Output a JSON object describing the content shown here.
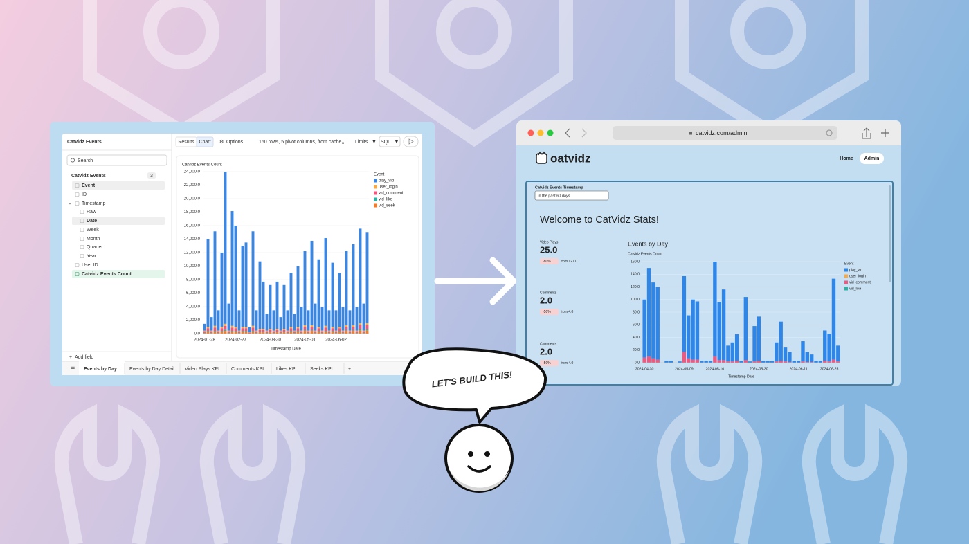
{
  "left_app": {
    "source": "Catvidz Events",
    "search": "Search",
    "explore": "Catvidz Events",
    "field_count": "3",
    "fields": [
      "Event",
      "ID",
      "Timestamp",
      "Raw",
      "Date",
      "Week",
      "Month",
      "Quarter",
      "Year",
      "User ID",
      "Catvidz Events Count"
    ],
    "add_field": "Add field",
    "toolbar": {
      "results": "Results",
      "chart": "Chart",
      "options": "Options",
      "status": "160 rows, 5 pivot columns, from cache",
      "limits": "Limits",
      "sql": "SQL"
    },
    "tabs": [
      "Events by Day",
      "Events by Day Detail",
      "Video Plays KPI",
      "Comments KPI",
      "Likes KPI",
      "Seeks KPI"
    ]
  },
  "browser": {
    "url": "catvidz.com/admin",
    "logo": "oatvidz",
    "nav": [
      "Home",
      "Admin"
    ],
    "filter_label": "Catvidz Events Timestamp",
    "filter_value": "In the past 60 days",
    "heading": "Welcome to CatVidz Stats!",
    "kpis": [
      {
        "label": "Video Plays",
        "value": "25.0",
        "change": "-80%",
        "compare": "from 127.0"
      },
      {
        "label": "Comments",
        "value": "2.0",
        "change": "-50%",
        "compare": "from 4.0"
      },
      {
        "label": "Comments",
        "value": "2.0",
        "change": "-50%",
        "compare": "from 4.0"
      }
    ]
  },
  "speech": "LET'S BUILD THIS!",
  "chart_data": [
    {
      "type": "bar",
      "ylabel": "Catvidz Events Count",
      "xlabel": "Timestamp Date",
      "legend_title": "Event",
      "categories": [
        "2024-01-28",
        null,
        null,
        null,
        null,
        null,
        null,
        null,
        null,
        "2024-02-27",
        null,
        null,
        null,
        null,
        null,
        null,
        null,
        null,
        null,
        "2024-03-30",
        null,
        null,
        null,
        null,
        null,
        null,
        null,
        null,
        null,
        "2024-05-01",
        null,
        null,
        null,
        null,
        null,
        null,
        null,
        null,
        "2024-06-02",
        null,
        null,
        null,
        null,
        null,
        null,
        null,
        null,
        null
      ],
      "ylim": [
        0,
        24000
      ],
      "yticks": [
        {
          "value": 0,
          "label": "0.0"
        },
        {
          "value": 2000,
          "label": "2,000.0"
        },
        {
          "value": 4000,
          "label": "4,000.0"
        },
        {
          "value": 6000,
          "label": "6,000.0"
        },
        {
          "value": 8000,
          "label": "8,000.0"
        },
        {
          "value": 10000,
          "label": "10,000.0"
        },
        {
          "value": 12000,
          "label": "12,000.0"
        },
        {
          "value": 14000,
          "label": "14,000.0"
        },
        {
          "value": 16000,
          "label": "16,000.0"
        },
        {
          "value": 18000,
          "label": "18,000.0"
        },
        {
          "value": 20000,
          "label": "20,000.0"
        },
        {
          "value": 22000,
          "label": "22,000.0"
        },
        {
          "value": 24000,
          "label": "24,000.0"
        }
      ],
      "grid": true,
      "stacked": true,
      "series": [
        {
          "name": "play_vid",
          "color": "#3a86e0",
          "values": [
            1000,
            13000,
            2000,
            14000,
            3000,
            11000,
            22500,
            4000,
            17000,
            15000,
            3000,
            12000,
            12500,
            800,
            14000,
            3000,
            10000,
            7000,
            2500,
            6500,
            3000,
            7000,
            2000,
            6500,
            3000,
            8000,
            2500,
            9000,
            3500,
            11000,
            3000,
            12500,
            4000,
            10000,
            3500,
            13000,
            3000,
            9500,
            3000,
            8000,
            3500,
            11000,
            3000,
            12000,
            3500,
            14000,
            4000,
            13500
          ]
        },
        {
          "name": "user_login",
          "color": "#f2aa4c",
          "values": [
            100,
            200,
            100,
            250,
            100,
            200,
            300,
            100,
            250,
            200,
            100,
            200,
            200,
            50,
            250,
            100,
            150,
            150,
            100,
            150,
            100,
            150,
            100,
            150,
            100,
            200,
            100,
            200,
            100,
            250,
            100,
            250,
            100,
            200,
            100,
            250,
            100,
            200,
            100,
            200,
            100,
            250,
            100,
            250,
            100,
            300,
            100,
            300
          ]
        },
        {
          "name": "vid_comment",
          "color": "#e85a7e",
          "values": [
            200,
            400,
            200,
            500,
            200,
            400,
            600,
            200,
            500,
            400,
            200,
            400,
            400,
            100,
            500,
            200,
            300,
            300,
            200,
            300,
            200,
            300,
            200,
            300,
            200,
            400,
            200,
            400,
            200,
            500,
            200,
            500,
            200,
            400,
            200,
            500,
            200,
            400,
            200,
            400,
            200,
            500,
            200,
            500,
            200,
            600,
            200,
            600
          ]
        },
        {
          "name": "vid_like",
          "color": "#2ab3a3",
          "values": [
            50,
            100,
            50,
            100,
            50,
            100,
            150,
            50,
            100,
            100,
            50,
            100,
            100,
            0,
            100,
            50,
            50,
            50,
            50,
            50,
            50,
            50,
            50,
            50,
            50,
            100,
            50,
            100,
            50,
            100,
            50,
            100,
            50,
            100,
            50,
            100,
            50,
            100,
            50,
            100,
            50,
            100,
            50,
            100,
            50,
            150,
            50,
            150
          ]
        },
        {
          "name": "vid_seek",
          "color": "#f27b2c",
          "values": [
            100,
            300,
            100,
            300,
            100,
            300,
            400,
            100,
            300,
            300,
            100,
            300,
            300,
            50,
            300,
            100,
            200,
            200,
            100,
            200,
            100,
            200,
            100,
            200,
            100,
            300,
            100,
            300,
            100,
            400,
            100,
            400,
            100,
            300,
            100,
            300,
            100,
            300,
            100,
            300,
            100,
            400,
            100,
            400,
            100,
            500,
            100,
            500
          ]
        }
      ]
    },
    {
      "type": "bar",
      "title": "Events by Day",
      "ylabel": "Catvidz Events Count",
      "xlabel": "Timestamp Date",
      "legend_title": "Event",
      "categories": [
        "2024-04-30",
        null,
        null,
        null,
        null,
        null,
        null,
        null,
        null,
        "2024-05-09",
        null,
        null,
        null,
        null,
        null,
        null,
        "2024-05-16",
        null,
        null,
        null,
        null,
        null,
        null,
        null,
        null,
        null,
        "2024-05-30",
        null,
        null,
        null,
        null,
        null,
        null,
        null,
        null,
        "2024-06-11",
        null,
        null,
        null,
        null,
        null,
        null,
        "2024-06-25",
        null,
        null
      ],
      "ylim": [
        0,
        160
      ],
      "yticks": [
        {
          "value": 0,
          "label": "0.0"
        },
        {
          "value": 20,
          "label": "20.0"
        },
        {
          "value": 40,
          "label": "40.0"
        },
        {
          "value": 60,
          "label": "60.0"
        },
        {
          "value": 80,
          "label": "80.0"
        },
        {
          "value": 100,
          "label": "100.0"
        },
        {
          "value": 120,
          "label": "120.0"
        },
        {
          "value": 140,
          "label": "140.0"
        },
        {
          "value": 160,
          "label": "160.0"
        }
      ],
      "grid": true,
      "stacked": true,
      "series": [
        {
          "name": "play_vid",
          "color": "#2f86e6",
          "values": [
            92,
            140,
            120,
            115,
            0,
            3,
            3,
            0,
            2,
            120,
            68,
            95,
            92,
            3,
            3,
            3,
            150,
            92,
            112,
            25,
            30,
            42,
            3,
            100,
            2,
            56,
            70,
            3,
            3,
            3,
            30,
            62,
            22,
            16,
            3,
            3,
            32,
            16,
            12,
            3,
            3,
            48,
            44,
            128,
            25
          ]
        },
        {
          "name": "user_login",
          "color": "#f2aa4c",
          "values": [
            0,
            0,
            0,
            0,
            0,
            0,
            0,
            0,
            0,
            0,
            0,
            0,
            0,
            0,
            0,
            0,
            0,
            0,
            0,
            0,
            0,
            0,
            0,
            0,
            0,
            0,
            0,
            0,
            0,
            0,
            0,
            0,
            0,
            0,
            0,
            0,
            0,
            0,
            0,
            0,
            0,
            0,
            0,
            0,
            0
          ]
        },
        {
          "name": "vid_comment",
          "color": "#ec5a82",
          "values": [
            8,
            10,
            7,
            5,
            0,
            0,
            0,
            0,
            0,
            17,
            7,
            5,
            5,
            0,
            0,
            0,
            10,
            4,
            4,
            2,
            2,
            3,
            0,
            4,
            0,
            2,
            3,
            0,
            0,
            0,
            2,
            3,
            2,
            1,
            0,
            0,
            2,
            1,
            1,
            0,
            0,
            3,
            2,
            5,
            2
          ]
        },
        {
          "name": "vid_like",
          "color": "#2ab3a3",
          "values": [
            0,
            0,
            0,
            0,
            0,
            0,
            0,
            0,
            0,
            0,
            0,
            0,
            0,
            0,
            0,
            0,
            0,
            0,
            0,
            0,
            0,
            0,
            0,
            0,
            0,
            0,
            0,
            0,
            0,
            0,
            0,
            0,
            0,
            0,
            0,
            0,
            0,
            0,
            0,
            0,
            0,
            0,
            0,
            0,
            0
          ]
        }
      ]
    }
  ]
}
